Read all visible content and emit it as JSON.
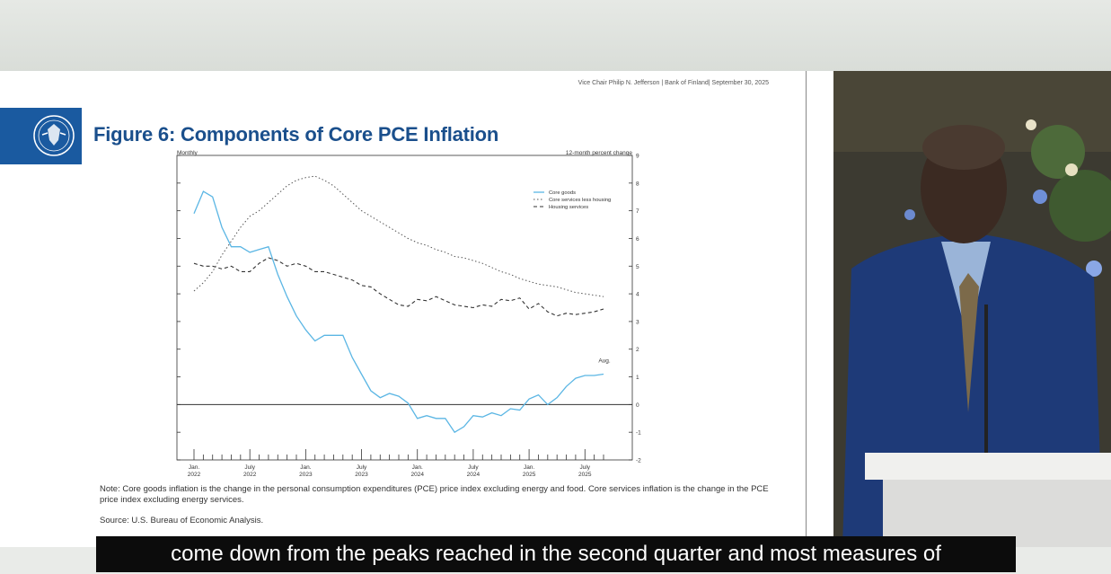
{
  "slide": {
    "header_meta": "Vice Chair Philip N. Jefferson | Bank of Finland| September 30, 2025",
    "title": "Figure 6: Components of Core PCE Inflation",
    "note": "Note: Core goods inflation is the change in the personal consumption expenditures (PCE) price index excluding energy and food. Core services inflation is the change in the PCE price index excluding energy services.",
    "source": "Source: U.S. Bureau of Economic Analysis."
  },
  "caption": "come down from the peaks reached in the second quarter and most measures of",
  "colors": {
    "title_blue": "#1a4f8c",
    "seal_blue": "#1a5aa0",
    "core_goods": "#5bb6e4",
    "services": "#555555",
    "caption_bg": "#0c0c0c"
  },
  "chart_data": {
    "type": "line",
    "title": "",
    "xlabel": "",
    "ylabel": "12-month percent change",
    "top_left_label": "Monthly",
    "ylim": [
      -2,
      9
    ],
    "yticks": [
      -2,
      -1,
      0,
      1,
      2,
      3,
      4,
      5,
      6,
      7,
      8,
      9
    ],
    "x_month_range": [
      0,
      44
    ],
    "x_tick_labels": [
      {
        "month": 0,
        "line1": "Jan.",
        "line2": "2022"
      },
      {
        "month": 6,
        "line1": "July",
        "line2": "2022"
      },
      {
        "month": 12,
        "line1": "Jan.",
        "line2": "2023"
      },
      {
        "month": 18,
        "line1": "July",
        "line2": "2023"
      },
      {
        "month": 24,
        "line1": "Jan.",
        "line2": "2024"
      },
      {
        "month": 30,
        "line1": "July",
        "line2": "2024"
      },
      {
        "month": 36,
        "line1": "Jan.",
        "line2": "2025"
      },
      {
        "month": 42,
        "line1": "July",
        "line2": "2025"
      }
    ],
    "end_annotation": "Aug.",
    "legend_position": "top-right",
    "series": [
      {
        "name": "Core goods",
        "style": "solid",
        "values": [
          6.9,
          7.7,
          7.5,
          6.4,
          5.7,
          5.7,
          5.5,
          5.6,
          5.7,
          4.7,
          3.9,
          3.2,
          2.7,
          2.3,
          2.5,
          2.5,
          2.5,
          1.7,
          1.1,
          0.5,
          0.25,
          0.4,
          0.3,
          0.05,
          -0.5,
          -0.4,
          -0.5,
          -0.5,
          -1.0,
          -0.8,
          -0.4,
          -0.45,
          -0.3,
          -0.4,
          -0.15,
          -0.2,
          0.2,
          0.35,
          0.0,
          0.25,
          0.65,
          0.95,
          1.05,
          1.05,
          1.1
        ]
      },
      {
        "name": "Core services less housing",
        "style": "dotted",
        "values": [
          4.1,
          4.4,
          4.8,
          5.4,
          5.9,
          6.4,
          6.8,
          7.0,
          7.3,
          7.6,
          7.9,
          8.1,
          8.2,
          8.25,
          8.1,
          7.9,
          7.6,
          7.3,
          7.0,
          6.8,
          6.6,
          6.4,
          6.2,
          6.0,
          5.85,
          5.75,
          5.6,
          5.5,
          5.35,
          5.3,
          5.2,
          5.1,
          4.95,
          4.8,
          4.7,
          4.55,
          4.45,
          4.35,
          4.3,
          4.25,
          4.15,
          4.05,
          4.0,
          3.95,
          3.9
        ]
      },
      {
        "name": "Housing services",
        "style": "dashed",
        "values": [
          5.1,
          5.0,
          5.0,
          4.9,
          5.0,
          4.8,
          4.8,
          5.1,
          5.3,
          5.2,
          5.0,
          5.1,
          5.0,
          4.8,
          4.8,
          4.7,
          4.6,
          4.5,
          4.3,
          4.25,
          4.0,
          3.8,
          3.6,
          3.55,
          3.8,
          3.75,
          3.9,
          3.75,
          3.6,
          3.55,
          3.5,
          3.6,
          3.55,
          3.8,
          3.75,
          3.85,
          3.45,
          3.65,
          3.35,
          3.2,
          3.3,
          3.25,
          3.3,
          3.35,
          3.45
        ]
      }
    ]
  }
}
